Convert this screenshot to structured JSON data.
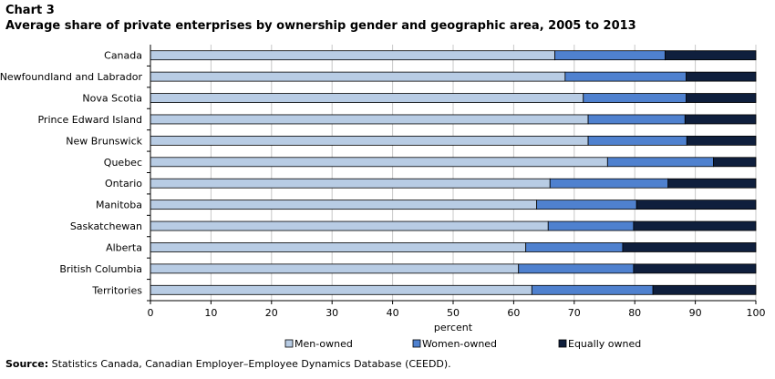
{
  "header": {
    "chart_label": "Chart 3",
    "title": "Average share of private enterprises by ownership gender and geographic area, 2005 to 2013"
  },
  "source": {
    "label": "Source:",
    "text": "Statistics Canada, Canadian Employer–Employee Dynamics Database (CEEDD)."
  },
  "colors": {
    "men": "#b8cce4",
    "women": "#4f81cf",
    "equal": "#0f1f3d",
    "grid": "#c8c8c8",
    "outline": "#000000"
  },
  "chart_data": {
    "type": "bar",
    "orientation": "horizontal",
    "stacked": true,
    "title": "Average share of private enterprises by ownership gender and geographic area, 2005 to 2013",
    "xlabel": "percent",
    "ylabel": "",
    "xlim": [
      0,
      100
    ],
    "xticks": [
      0,
      10,
      20,
      30,
      40,
      50,
      60,
      70,
      80,
      90,
      100
    ],
    "grid": "vertical",
    "legend_position": "bottom",
    "categories": [
      "Canada",
      "Newfoundland and Labrador",
      "Nova Scotia",
      "Prince Edward Island",
      "New Brunswick",
      "Quebec",
      "Ontario",
      "Manitoba",
      "Saskatchewan",
      "Alberta",
      "British Columbia",
      "Territories"
    ],
    "series": [
      {
        "name": "Men-owned",
        "color": "#b8cce4",
        "values": [
          66.8,
          68.5,
          71.5,
          72.3,
          72.3,
          75.5,
          66.0,
          63.8,
          65.7,
          62.0,
          60.8,
          63.0
        ]
      },
      {
        "name": "Women-owned",
        "color": "#4f81cf",
        "values": [
          18.2,
          20.0,
          17.0,
          16.0,
          16.3,
          17.5,
          19.5,
          16.5,
          14.1,
          16.0,
          19.0,
          20.0
        ]
      },
      {
        "name": "Equally owned",
        "color": "#0f1f3d",
        "values": [
          15.0,
          11.5,
          11.5,
          11.7,
          11.4,
          7.0,
          14.5,
          19.7,
          20.2,
          22.0,
          20.2,
          17.0
        ]
      }
    ]
  }
}
